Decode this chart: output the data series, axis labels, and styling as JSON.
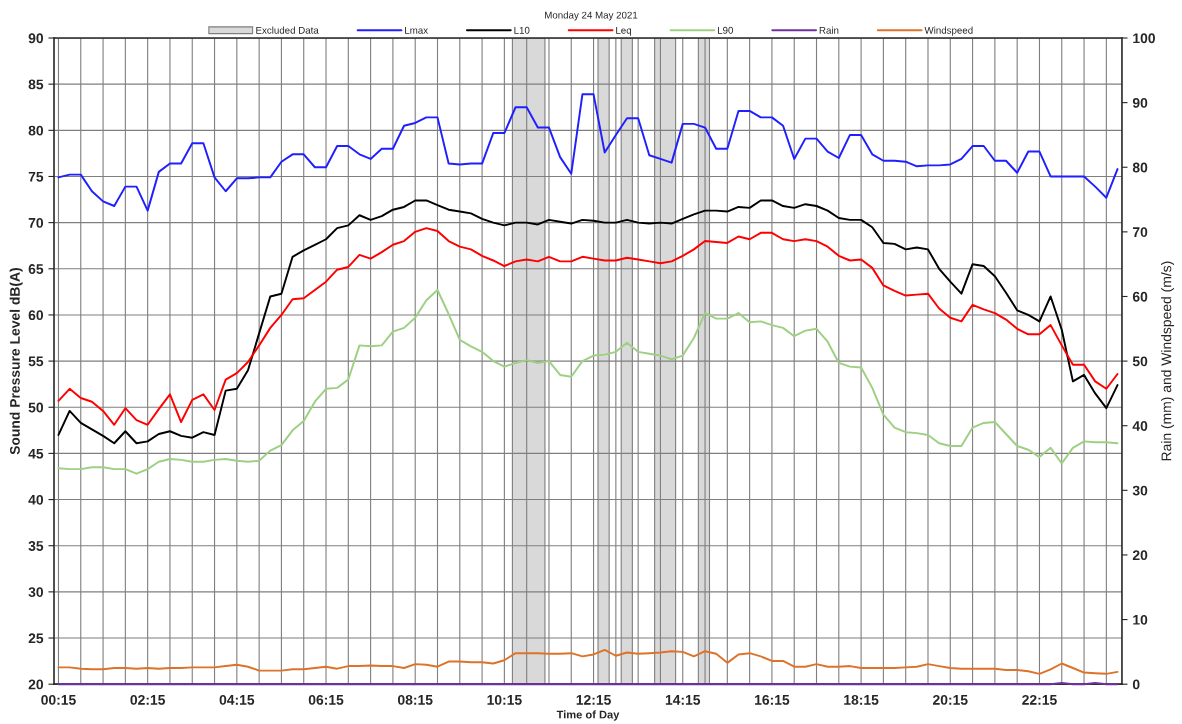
{
  "chart_data": {
    "type": "line",
    "title": "Monday 24 May 2021",
    "xlabel": "Time of Day",
    "ylabel": "Sound Pressure Level dB(A)",
    "y2label": "Rain (mm) and Windspeed (m/s)",
    "x": [
      0.25,
      0.5,
      0.75,
      1.0,
      1.25,
      1.5,
      1.75,
      2.0,
      2.25,
      2.5,
      2.75,
      3.0,
      3.25,
      3.5,
      3.75,
      4.0,
      4.25,
      4.5,
      4.75,
      5.0,
      5.25,
      5.5,
      5.75,
      6.0,
      6.25,
      6.5,
      6.75,
      7.0,
      7.25,
      7.5,
      7.75,
      8.0,
      8.25,
      8.5,
      8.75,
      9.0,
      9.25,
      9.5,
      9.75,
      10.0,
      10.25,
      10.5,
      10.75,
      11.0,
      11.25,
      11.5,
      11.75,
      12.0,
      12.25,
      12.5,
      12.75,
      13.0,
      13.25,
      13.5,
      13.75,
      14.0,
      14.25,
      14.5,
      14.75,
      15.0,
      15.25,
      15.5,
      15.75,
      16.0,
      16.25,
      16.5,
      16.75,
      17.0,
      17.25,
      17.5,
      17.75,
      18.0,
      18.25,
      18.5,
      18.75,
      19.0,
      19.25,
      19.5,
      19.75,
      20.0,
      20.25,
      20.5,
      20.75,
      21.0,
      21.25,
      21.5,
      21.75,
      22.0,
      22.25,
      22.5,
      22.75,
      23.0,
      23.25,
      23.5,
      23.75,
      24.0
    ],
    "xlim": [
      0.15,
      24.1
    ],
    "xticks": [
      {
        "value": 0.25,
        "label": "00:15"
      },
      {
        "value": 0.75,
        "label": null
      },
      {
        "value": 1.25,
        "label": null
      },
      {
        "value": 1.75,
        "label": null
      },
      {
        "value": 2.25,
        "label": "02:15"
      },
      {
        "value": 2.75,
        "label": null
      },
      {
        "value": 3.25,
        "label": null
      },
      {
        "value": 3.75,
        "label": null
      },
      {
        "value": 4.25,
        "label": "04:15"
      },
      {
        "value": 4.75,
        "label": null
      },
      {
        "value": 5.25,
        "label": null
      },
      {
        "value": 5.75,
        "label": null
      },
      {
        "value": 6.25,
        "label": "06:15"
      },
      {
        "value": 6.75,
        "label": null
      },
      {
        "value": 7.25,
        "label": null
      },
      {
        "value": 7.75,
        "label": null
      },
      {
        "value": 8.25,
        "label": "08:15"
      },
      {
        "value": 8.75,
        "label": null
      },
      {
        "value": 9.25,
        "label": null
      },
      {
        "value": 9.75,
        "label": null
      },
      {
        "value": 10.25,
        "label": "10:15"
      },
      {
        "value": 10.75,
        "label": null
      },
      {
        "value": 11.25,
        "label": null
      },
      {
        "value": 11.75,
        "label": null
      },
      {
        "value": 12.25,
        "label": "12:15"
      },
      {
        "value": 12.75,
        "label": null
      },
      {
        "value": 13.25,
        "label": null
      },
      {
        "value": 13.75,
        "label": null
      },
      {
        "value": 14.25,
        "label": "14:15"
      },
      {
        "value": 14.75,
        "label": null
      },
      {
        "value": 15.25,
        "label": null
      },
      {
        "value": 15.75,
        "label": null
      },
      {
        "value": 16.25,
        "label": "16:15"
      },
      {
        "value": 16.75,
        "label": null
      },
      {
        "value": 17.25,
        "label": null
      },
      {
        "value": 17.75,
        "label": null
      },
      {
        "value": 18.25,
        "label": "18:15"
      },
      {
        "value": 18.75,
        "label": null
      },
      {
        "value": 19.25,
        "label": null
      },
      {
        "value": 19.75,
        "label": null
      },
      {
        "value": 20.25,
        "label": "20:15"
      },
      {
        "value": 20.75,
        "label": null
      },
      {
        "value": 21.25,
        "label": null
      },
      {
        "value": 21.75,
        "label": null
      },
      {
        "value": 22.25,
        "label": "22:15"
      },
      {
        "value": 22.75,
        "label": null
      },
      {
        "value": 23.25,
        "label": null
      },
      {
        "value": 23.75,
        "label": null
      }
    ],
    "ylim": [
      20,
      90
    ],
    "yticks": [
      20,
      25,
      30,
      35,
      40,
      45,
      50,
      55,
      60,
      65,
      70,
      75,
      80,
      85,
      90
    ],
    "y2lim": [
      0,
      100
    ],
    "y2ticks": [
      0,
      10,
      20,
      30,
      40,
      50,
      60,
      70,
      80,
      90,
      100
    ],
    "grid": true,
    "legend": "top",
    "marker": "none",
    "line_style": "solid",
    "bands": [
      {
        "axis": "x",
        "from": 10.43,
        "to": 11.16,
        "label": "Excluded Data",
        "color": "#d9d9d9"
      },
      {
        "axis": "x",
        "from": 12.35,
        "to": 12.6,
        "color": "#d9d9d9"
      },
      {
        "axis": "x",
        "from": 12.87,
        "to": 13.12,
        "color": "#d9d9d9"
      },
      {
        "axis": "x",
        "from": 13.62,
        "to": 14.09,
        "color": "#d9d9d9"
      },
      {
        "axis": "x",
        "from": 14.6,
        "to": 14.85,
        "color": "#d9d9d9"
      }
    ],
    "series": [
      {
        "name": "Lmax",
        "color": "#1f1fff",
        "values": [
          74.9,
          75.2,
          75.2,
          73.4,
          72.3,
          71.8,
          73.9,
          73.9,
          71.3,
          75.5,
          76.4,
          76.4,
          78.6,
          78.6,
          74.9,
          73.4,
          74.8,
          74.8,
          74.9,
          74.9,
          76.6,
          77.4,
          77.4,
          76.0,
          76.0,
          78.3,
          78.3,
          77.4,
          76.9,
          78.0,
          78.0,
          80.5,
          80.8,
          81.4,
          81.4,
          76.4,
          76.3,
          76.4,
          76.4,
          79.7,
          79.7,
          82.5,
          82.5,
          80.3,
          80.3,
          77.1,
          75.3,
          83.9,
          83.9,
          77.6,
          79.5,
          81.3,
          81.3,
          77.3,
          76.9,
          76.5,
          80.7,
          80.7,
          80.3,
          78.0,
          78.0,
          82.1,
          82.1,
          81.4,
          81.4,
          80.5,
          76.9,
          79.1,
          79.1,
          77.7,
          77.0,
          79.5,
          79.5,
          77.4,
          76.7,
          76.7,
          76.6,
          76.1,
          76.2,
          76.2,
          76.3,
          76.9,
          78.3,
          78.3,
          76.7,
          76.7,
          75.4,
          77.7,
          77.7,
          75.0,
          75.0,
          75.0,
          75.0,
          73.9,
          72.7,
          75.8
        ]
      },
      {
        "name": "L10",
        "color": "#000000",
        "values": [
          47.0,
          49.6,
          48.3,
          47.6,
          46.9,
          46.1,
          47.4,
          46.1,
          46.3,
          47.1,
          47.4,
          46.9,
          46.7,
          47.3,
          47.0,
          51.8,
          52.0,
          54.0,
          58.0,
          62.0,
          62.3,
          66.3,
          67.0,
          67.6,
          68.2,
          69.4,
          69.7,
          70.8,
          70.3,
          70.7,
          71.4,
          71.7,
          72.4,
          72.4,
          71.9,
          71.4,
          71.2,
          71.0,
          70.4,
          70.0,
          69.7,
          70.0,
          70.0,
          69.8,
          70.3,
          70.1,
          69.9,
          70.3,
          70.2,
          70.0,
          70.0,
          70.3,
          70.0,
          69.9,
          70.0,
          69.9,
          70.4,
          70.9,
          71.3,
          71.3,
          71.2,
          71.7,
          71.6,
          72.4,
          72.4,
          71.8,
          71.6,
          72.0,
          71.8,
          71.3,
          70.5,
          70.3,
          70.3,
          69.5,
          67.8,
          67.7,
          67.1,
          67.3,
          67.1,
          65.0,
          63.6,
          62.3,
          65.5,
          65.3,
          64.2,
          62.4,
          60.5,
          60.0,
          59.3,
          62.0,
          58.4,
          52.8,
          53.5,
          51.5,
          49.9,
          52.4
        ]
      },
      {
        "name": "Leq",
        "color": "#ff0000",
        "values": [
          50.7,
          52.0,
          51.0,
          50.6,
          49.6,
          48.1,
          49.9,
          48.6,
          48.1,
          49.8,
          51.4,
          48.4,
          50.8,
          51.4,
          49.7,
          53.0,
          53.7,
          54.9,
          56.7,
          58.6,
          60.0,
          61.7,
          61.8,
          62.7,
          63.6,
          64.9,
          65.2,
          66.5,
          66.1,
          66.8,
          67.6,
          68.0,
          69.0,
          69.4,
          69.1,
          68.0,
          67.4,
          67.1,
          66.4,
          65.9,
          65.3,
          65.8,
          66.0,
          65.8,
          66.3,
          65.8,
          65.8,
          66.3,
          66.1,
          65.9,
          65.9,
          66.2,
          66.0,
          65.8,
          65.6,
          65.8,
          66.4,
          67.1,
          68.0,
          67.9,
          67.8,
          68.5,
          68.2,
          68.9,
          68.9,
          68.2,
          68.0,
          68.2,
          68.0,
          67.4,
          66.4,
          65.9,
          66.0,
          65.1,
          63.2,
          62.6,
          62.1,
          62.2,
          62.3,
          60.7,
          59.7,
          59.3,
          61.1,
          60.6,
          60.2,
          59.5,
          58.5,
          57.9,
          57.9,
          58.9,
          56.7,
          54.6,
          54.6,
          52.8,
          52.0,
          53.6
        ]
      },
      {
        "name": "L90",
        "color": "#9dd082",
        "values": [
          43.4,
          43.3,
          43.3,
          43.5,
          43.5,
          43.3,
          43.3,
          42.8,
          43.3,
          44.1,
          44.4,
          44.3,
          44.1,
          44.1,
          44.3,
          44.4,
          44.2,
          44.1,
          44.2,
          45.3,
          45.9,
          47.5,
          48.5,
          50.6,
          52.0,
          52.1,
          53.0,
          56.7,
          56.6,
          56.7,
          58.2,
          58.6,
          59.7,
          61.6,
          62.7,
          60.1,
          57.3,
          56.6,
          56.0,
          55.0,
          54.4,
          54.8,
          55.1,
          54.8,
          55.0,
          53.5,
          53.3,
          55.0,
          55.6,
          55.7,
          56.0,
          57.0,
          56.0,
          55.8,
          55.6,
          55.2,
          55.6,
          57.5,
          60.2,
          59.6,
          59.6,
          60.2,
          59.2,
          59.3,
          58.9,
          58.6,
          57.7,
          58.3,
          58.5,
          57.1,
          54.8,
          54.4,
          54.3,
          52.1,
          49.2,
          47.8,
          47.3,
          47.2,
          47.0,
          46.1,
          45.8,
          45.8,
          47.8,
          48.3,
          48.4,
          47.1,
          45.8,
          45.4,
          44.6,
          45.6,
          43.9,
          45.6,
          46.3,
          46.2,
          46.2,
          46.1
        ]
      },
      {
        "name": "Rain",
        "color": "#7030a0",
        "axis": "y2",
        "values": [
          0,
          0,
          0,
          0,
          0,
          0,
          0,
          0,
          0,
          0,
          0,
          0,
          0,
          0,
          0,
          0,
          0,
          0,
          0,
          0,
          0,
          0,
          0,
          0,
          0,
          0,
          0,
          0,
          0,
          0,
          0,
          0,
          0,
          0,
          0,
          0,
          0,
          0,
          0,
          0,
          0,
          0,
          0,
          0,
          0,
          0,
          0,
          0,
          0,
          0,
          0,
          0,
          0,
          0,
          0,
          0,
          0,
          0,
          0,
          0,
          0,
          0,
          0,
          0,
          0,
          0,
          0,
          0,
          0,
          0,
          0,
          0,
          0,
          0,
          0,
          0,
          0,
          0,
          0,
          0,
          0,
          0,
          0,
          0,
          0,
          0,
          0,
          0,
          0,
          0,
          0.2,
          0,
          0,
          0.2,
          0,
          0
        ]
      },
      {
        "name": "Windspeed",
        "color": "#dd7329",
        "axis": "y2",
        "values": [
          2.6,
          2.6,
          2.4,
          2.3,
          2.3,
          2.5,
          2.5,
          2.4,
          2.5,
          2.4,
          2.5,
          2.5,
          2.6,
          2.6,
          2.6,
          2.8,
          3.0,
          2.7,
          2.1,
          2.1,
          2.1,
          2.3,
          2.3,
          2.5,
          2.7,
          2.4,
          2.8,
          2.8,
          2.9,
          2.8,
          2.8,
          2.5,
          3.1,
          3.0,
          2.7,
          3.5,
          3.5,
          3.4,
          3.4,
          3.2,
          3.7,
          4.8,
          4.8,
          4.8,
          4.7,
          4.7,
          4.8,
          4.3,
          4.6,
          5.3,
          4.4,
          4.9,
          4.7,
          4.8,
          4.9,
          5.1,
          5.0,
          4.3,
          5.1,
          4.7,
          3.3,
          4.6,
          4.8,
          4.3,
          3.6,
          3.6,
          2.7,
          2.7,
          3.1,
          2.7,
          2.7,
          2.8,
          2.5,
          2.5,
          2.5,
          2.5,
          2.6,
          2.7,
          3.1,
          2.8,
          2.5,
          2.4,
          2.4,
          2.4,
          2.4,
          2.2,
          2.2,
          2.0,
          1.6,
          2.3,
          3.2,
          2.5,
          1.8,
          1.7,
          1.6,
          1.9
        ]
      }
    ]
  }
}
